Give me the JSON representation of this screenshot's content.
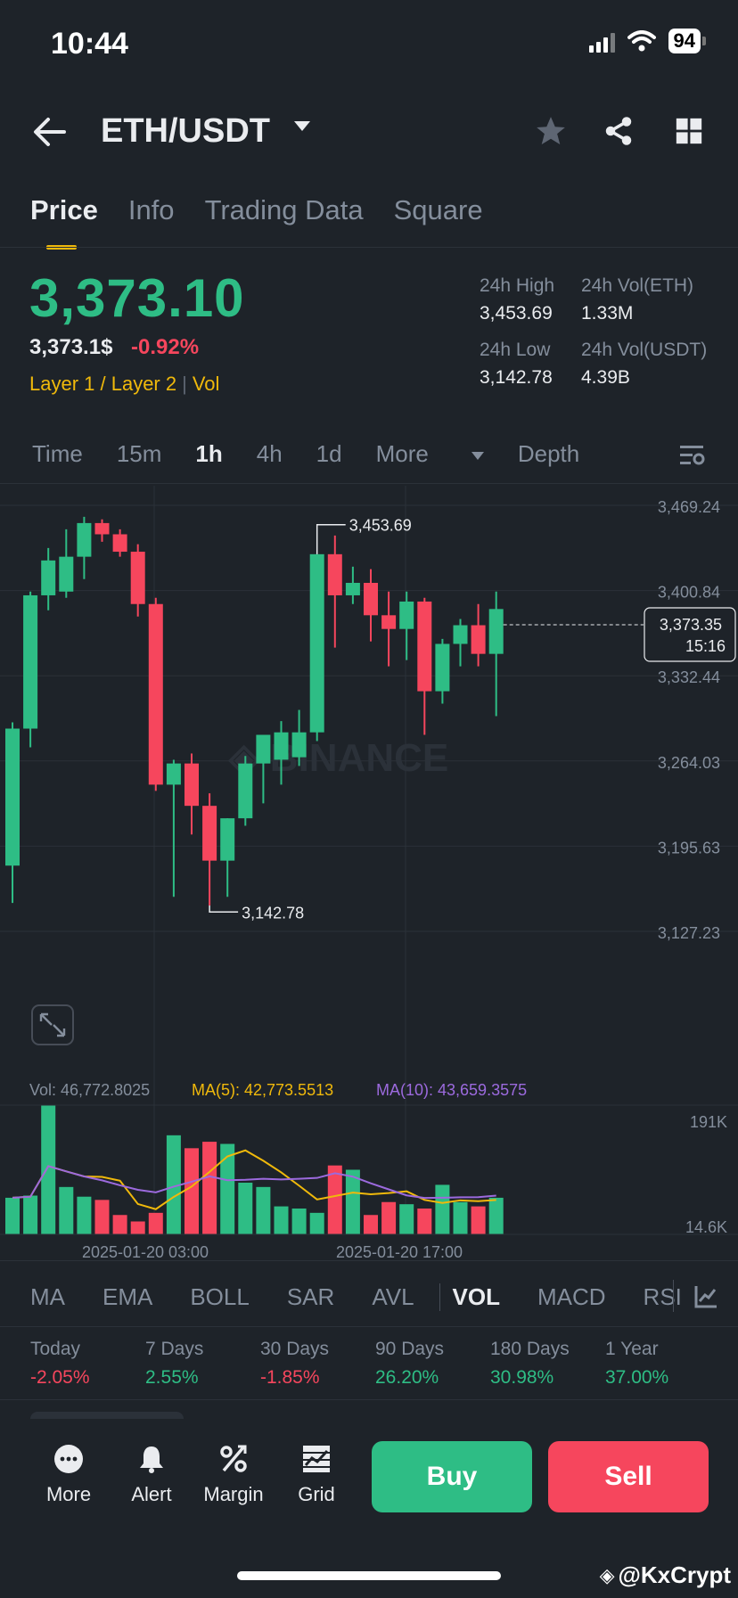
{
  "status_bar": {
    "time": "10:44",
    "battery": "94"
  },
  "header": {
    "pair": "ETH/USDT"
  },
  "tabs": [
    {
      "label": "Price",
      "active": true
    },
    {
      "label": "Info"
    },
    {
      "label": "Trading Data"
    },
    {
      "label": "Square"
    }
  ],
  "ticker": {
    "last_price": "3,373.10",
    "price_usd": "3,373.1$",
    "change_pct": "-0.92%",
    "tag_1": "Layer 1 / Layer 2",
    "tag_2": "Vol",
    "high_label": "24h High",
    "high": "3,453.69",
    "low_label": "24h Low",
    "low": "3,142.78",
    "vol_eth_label": "24h Vol(ETH)",
    "vol_eth": "1.33M",
    "vol_usdt_label": "24h Vol(USDT)",
    "vol_usdt": "4.39B"
  },
  "intervals": {
    "items": [
      "Time",
      "15m",
      "1h",
      "4h",
      "1d",
      "More"
    ],
    "active": "1h",
    "depth": "Depth"
  },
  "chart_data": {
    "type": "candlestick",
    "y_ticks": [
      "3,469.24",
      "3,400.84",
      "3,332.44",
      "3,264.03",
      "3,195.63",
      "3,127.23"
    ],
    "ylim": [
      3127.23,
      3469.24
    ],
    "x_labels": [
      "2025-01-20 03:00",
      "2025-01-20 17:00"
    ],
    "current_price_tag": "3,373.35",
    "countdown": "15:16",
    "high_marker": "3,453.69",
    "low_marker": "3,142.78",
    "candles": [
      [
        3180,
        3295,
        3150,
        3290
      ],
      [
        3290,
        3400,
        3275,
        3397
      ],
      [
        3397,
        3435,
        3385,
        3425
      ],
      [
        3400,
        3450,
        3395,
        3428
      ],
      [
        3428,
        3460,
        3410,
        3455
      ],
      [
        3455,
        3458,
        3440,
        3446
      ],
      [
        3446,
        3450,
        3428,
        3432
      ],
      [
        3432,
        3438,
        3380,
        3390
      ],
      [
        3390,
        3395,
        3240,
        3245
      ],
      [
        3245,
        3265,
        3155,
        3262
      ],
      [
        3262,
        3270,
        3205,
        3228
      ],
      [
        3228,
        3238,
        3148,
        3184
      ],
      [
        3184,
        3218,
        3155,
        3218
      ],
      [
        3218,
        3268,
        3212,
        3262
      ],
      [
        3262,
        3282,
        3230,
        3285
      ],
      [
        3265,
        3296,
        3245,
        3287
      ],
      [
        3267,
        3305,
        3260,
        3287
      ],
      [
        3287,
        3430,
        3280,
        3430
      ],
      [
        3430,
        3445,
        3355,
        3397
      ],
      [
        3397,
        3420,
        3390,
        3407
      ],
      [
        3407,
        3418,
        3360,
        3381
      ],
      [
        3381,
        3400,
        3340,
        3370
      ],
      [
        3370,
        3400,
        3345,
        3392
      ],
      [
        3392,
        3395,
        3285,
        3320
      ],
      [
        3320,
        3362,
        3310,
        3358
      ],
      [
        3358,
        3378,
        3340,
        3373
      ],
      [
        3373,
        3390,
        3340,
        3350
      ],
      [
        3350,
        3400,
        3300,
        3386
      ]
    ],
    "volume": {
      "vol_label": "Vol: 46,772.8025",
      "ma5_label": "MA(5): 42,773.5513",
      "ma10_label": "MA(10): 43,659.3575",
      "y_max_label": "191K",
      "y_min_label": "14.6K",
      "values": [
        34,
        36,
        120,
        44,
        35,
        32,
        18,
        12,
        20,
        92,
        80,
        86,
        84,
        48,
        44,
        26,
        24,
        20,
        64,
        60,
        18,
        30,
        28,
        24,
        46,
        30,
        26,
        34
      ]
    },
    "ma5_color": "#f0b90b",
    "ma10_color": "#9c6ade"
  },
  "indicator_tabs": {
    "items": [
      "MA",
      "EMA",
      "BOLL",
      "SAR",
      "AVL",
      "VOL",
      "MACD",
      "RSI"
    ],
    "active": "VOL"
  },
  "performance": [
    {
      "label": "Today",
      "value": "-2.05%",
      "up": false
    },
    {
      "label": "7 Days",
      "value": "2.55%",
      "up": true
    },
    {
      "label": "30 Days",
      "value": "-1.85%",
      "up": false
    },
    {
      "label": "90 Days",
      "value": "26.20%",
      "up": true
    },
    {
      "label": "180 Days",
      "value": "30.98%",
      "up": true
    },
    {
      "label": "1 Year",
      "value": "37.00%",
      "up": true
    }
  ],
  "bottom_bar": {
    "more": "More",
    "alert": "Alert",
    "margin": "Margin",
    "grid": "Grid",
    "buy": "Buy",
    "sell": "Sell"
  },
  "colors": {
    "up": "#2ebd85",
    "down": "#f6465d",
    "accent": "#f0b90b",
    "bg": "#1e2329"
  },
  "watermark": "@KxCrypt"
}
